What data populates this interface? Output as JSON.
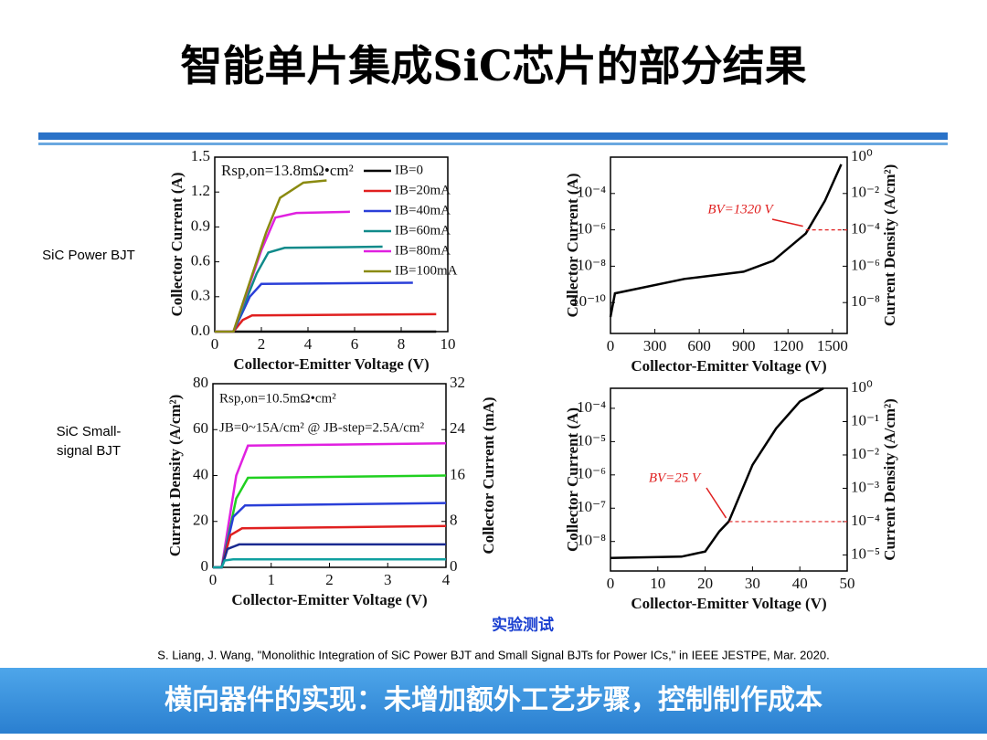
{
  "title": "智能单片集成SiC芯片的部分结果",
  "row_labels": [
    "SiC Power BJT",
    "SiC Small-",
    "signal BJT"
  ],
  "caption": "实验测试",
  "citation": "S. Liang, J. Wang, \"Monolithic Integration of SiC Power BJT and Small Signal BJTs for Power ICs,\" in IEEE JESTPE, Mar. 2020.",
  "footer": "横向器件的实现：未增加额外工艺步骤，控制制作成本",
  "chart_data": [
    {
      "type": "line",
      "xlabel": "Collector-Emitter Voltage (V)",
      "ylabel": "Collector Current (A)",
      "xlim": [
        0,
        10
      ],
      "xticks": [
        0,
        2,
        4,
        6,
        8,
        10
      ],
      "ylim": [
        0,
        1.5
      ],
      "yticks": [
        {
          "value": 0,
          "label": "0.0"
        },
        0.3,
        0.6,
        0.9,
        1.2,
        1.5
      ],
      "legend": "upper right",
      "annotations": [
        "Rsp,on=13.8mΩ•cm²"
      ],
      "series": [
        {
          "name": "IB=0",
          "color": "#000000",
          "x": [
            0,
            9.5
          ],
          "values": [
            0,
            0
          ]
        },
        {
          "name": "IB=20mA",
          "color": "#e02020",
          "x": [
            0,
            0.8,
            1.2,
            1.6,
            9.5
          ],
          "values": [
            0,
            0,
            0.1,
            0.14,
            0.15
          ]
        },
        {
          "name": "IB=40mA",
          "color": "#2a3fd8",
          "x": [
            0,
            0.8,
            1.5,
            2,
            8.5
          ],
          "values": [
            0,
            0,
            0.3,
            0.41,
            0.42
          ]
        },
        {
          "name": "IB=60mA",
          "color": "#108a8a",
          "x": [
            0,
            0.8,
            1.8,
            2.3,
            3,
            7.2
          ],
          "values": [
            0,
            0,
            0.5,
            0.68,
            0.72,
            0.73
          ]
        },
        {
          "name": "IB=80mA",
          "color": "#e020e0",
          "x": [
            0,
            0.8,
            2,
            2.6,
            3.5,
            5.8
          ],
          "values": [
            0,
            0,
            0.7,
            0.98,
            1.02,
            1.03
          ]
        },
        {
          "name": "IB=100mA",
          "color": "#8a8a10",
          "x": [
            0,
            0.8,
            2.2,
            2.8,
            3.8,
            4.8
          ],
          "values": [
            0,
            0,
            0.85,
            1.15,
            1.28,
            1.3
          ]
        }
      ]
    },
    {
      "type": "line",
      "yscale": "log",
      "xlabel": "Collector-Emitter Voltage (V)",
      "ylabel": "Collector Current (A)",
      "y2label": "Current Density (A/cm²)",
      "xlim": [
        0,
        1600
      ],
      "xticks": [
        0,
        300,
        600,
        900,
        1200,
        1500
      ],
      "ylim": [
        2e-12,
        0.01
      ],
      "yticks": [
        {
          "value": 1e-10,
          "label": "10⁻¹⁰"
        },
        {
          "value": 1e-08,
          "label": "10⁻⁸"
        },
        {
          "value": 1e-06,
          "label": "10⁻⁶"
        },
        {
          "value": 0.0001,
          "label": "10⁻⁴"
        }
      ],
      "y2lim": [
        2e-10,
        1
      ],
      "y2ticks": [
        {
          "value": 1e-08,
          "label": "10⁻⁸"
        },
        {
          "value": 1e-06,
          "label": "10⁻⁶"
        },
        {
          "value": 0.0001,
          "label": "10⁻⁴"
        },
        {
          "value": 0.01,
          "label": "10⁻²"
        },
        {
          "value": 1,
          "label": "10⁰"
        }
      ],
      "marker": {
        "label": "BV=1320 V",
        "x": 1320,
        "y2": 0.0001,
        "color": "#e02020"
      },
      "series": [
        {
          "color": "#000000",
          "x": [
            0,
            30,
            500,
            900,
            1100,
            1320,
            1450,
            1560
          ],
          "values": [
            1.6e-11,
            3.2e-10,
            2e-09,
            5e-09,
            2e-08,
            6.3e-07,
            4e-05,
            0.004
          ]
        }
      ]
    },
    {
      "type": "line",
      "xlabel": "Collector-Emitter Voltage (V)",
      "ylabel": "Current Density (A/cm²)",
      "y2label": "Collector Current (mA)",
      "xlim": [
        0,
        4
      ],
      "xticks": [
        0,
        1,
        2,
        3,
        4
      ],
      "ylim": [
        0,
        80
      ],
      "yticks": [
        0,
        20,
        40,
        60,
        80
      ],
      "y2lim": [
        0,
        32
      ],
      "y2ticks": [
        0,
        8,
        16,
        24,
        32
      ],
      "annotations": [
        "Rsp,on=10.5mΩ•cm²",
        "JB=0~15A/cm² @ JB-step=2.5A/cm²"
      ],
      "series": [
        {
          "color": "#e020e0",
          "x": [
            0,
            0.15,
            0.4,
            0.6,
            4
          ],
          "values": [
            0,
            0,
            40,
            53,
            54
          ]
        },
        {
          "color": "#20d020",
          "x": [
            0,
            0.15,
            0.4,
            0.6,
            4
          ],
          "values": [
            0,
            0,
            30,
            39,
            40
          ]
        },
        {
          "color": "#2a3fd8",
          "x": [
            0,
            0.15,
            0.35,
            0.55,
            4
          ],
          "values": [
            0,
            0,
            22,
            27,
            28
          ]
        },
        {
          "color": "#e02020",
          "x": [
            0,
            0.15,
            0.3,
            0.5,
            4
          ],
          "values": [
            0,
            0,
            14,
            17,
            18
          ]
        },
        {
          "color": "#1a2a90",
          "x": [
            0,
            0.15,
            0.25,
            0.45,
            4
          ],
          "values": [
            0,
            0,
            8,
            10,
            10
          ]
        },
        {
          "color": "#10a0a0",
          "x": [
            0,
            0.15,
            0.2,
            0.35,
            4
          ],
          "values": [
            0,
            0,
            3,
            3.5,
            3.5
          ]
        }
      ]
    },
    {
      "type": "line",
      "yscale": "log",
      "xlabel": "Collector-Emitter Voltage (V)",
      "ylabel": "Collector Current (A)",
      "y2label": "Current Density (A/cm²)",
      "xlim": [
        0,
        50
      ],
      "xticks": [
        0,
        10,
        20,
        30,
        40,
        50
      ],
      "ylim": [
        1.3e-09,
        0.0004
      ],
      "yticks": [
        {
          "value": 1e-08,
          "label": "10⁻⁸"
        },
        {
          "value": 1e-07,
          "label": "10⁻⁷"
        },
        {
          "value": 1e-06,
          "label": "10⁻⁶"
        },
        {
          "value": 1e-05,
          "label": "10⁻⁵"
        },
        {
          "value": 0.0001,
          "label": "10⁻⁴"
        }
      ],
      "y2lim": [
        3.3e-06,
        1
      ],
      "y2ticks": [
        {
          "value": 1e-05,
          "label": "10⁻⁵"
        },
        {
          "value": 0.0001,
          "label": "10⁻⁴"
        },
        {
          "value": 0.001,
          "label": "10⁻³"
        },
        {
          "value": 0.01,
          "label": "10⁻²"
        },
        {
          "value": 0.1,
          "label": "10⁻¹"
        },
        {
          "value": 1,
          "label": "10⁰"
        }
      ],
      "marker": {
        "label": "BV=25 V",
        "x": 25,
        "y2": 0.0001,
        "color": "#e02020"
      },
      "series": [
        {
          "color": "#000000",
          "x": [
            0,
            15,
            20,
            23,
            25,
            30,
            35,
            40,
            45
          ],
          "values": [
            3.2e-09,
            3.5e-09,
            5e-09,
            2e-08,
            4e-08,
            2e-06,
            2.5e-05,
            0.00016,
            0.0004
          ]
        }
      ]
    }
  ]
}
